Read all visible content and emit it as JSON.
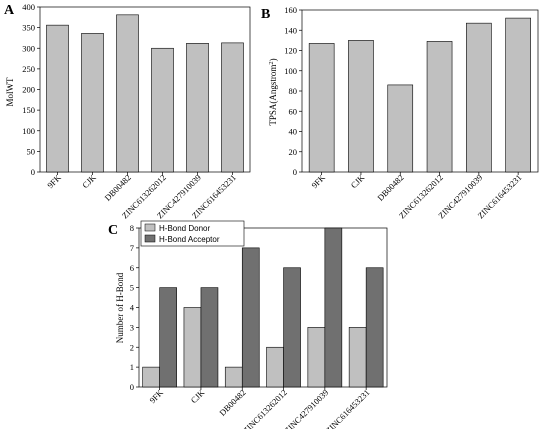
{
  "chart_data": [
    {
      "panel": "A",
      "type": "bar",
      "categories": [
        "9FK",
        "CJK",
        "DB00482",
        "ZINC613262012",
        "ZINC427910039",
        "ZINC616453231"
      ],
      "values": [
        356,
        336,
        381,
        300,
        312,
        313
      ],
      "ylabel": "MolWT",
      "ylim": [
        0,
        400
      ],
      "yticks": [
        0,
        50,
        100,
        150,
        200,
        250,
        300,
        350,
        400
      ],
      "colors": {
        "bar": "#c0c0c0",
        "stroke": "#000000"
      }
    },
    {
      "panel": "B",
      "type": "bar",
      "categories": [
        "9FK",
        "CJK",
        "DB00482",
        "ZINC613262012",
        "ZINC427910039",
        "ZINC616453231"
      ],
      "values": [
        127,
        130,
        86,
        129,
        147,
        152
      ],
      "ylabel_main": "TPSA(Angstrom",
      "ylabel_sup": "2",
      "ylabel_end": ")",
      "ylim": [
        0,
        160
      ],
      "yticks": [
        0,
        20,
        40,
        60,
        80,
        100,
        120,
        140,
        160
      ],
      "colors": {
        "bar": "#c0c0c0",
        "stroke": "#000000"
      }
    },
    {
      "panel": "C",
      "type": "bar",
      "categories": [
        "9FK",
        "CJK",
        "DB00482",
        "ZINC613262012",
        "ZINC427910039",
        "ZINC616453231"
      ],
      "series": [
        {
          "name": "H-Bond Donor",
          "values": [
            1,
            4,
            1,
            2,
            3,
            3
          ],
          "color": "#c0c0c0"
        },
        {
          "name": "H-Bond Acceptor",
          "values": [
            5,
            5,
            7,
            6,
            8,
            6
          ],
          "color": "#707070"
        }
      ],
      "ylabel": "Number of H-Bond",
      "ylim": [
        0,
        8
      ],
      "yticks": [
        0,
        1,
        2,
        3,
        4,
        5,
        6,
        7,
        8
      ],
      "legend": "top-left"
    }
  ]
}
